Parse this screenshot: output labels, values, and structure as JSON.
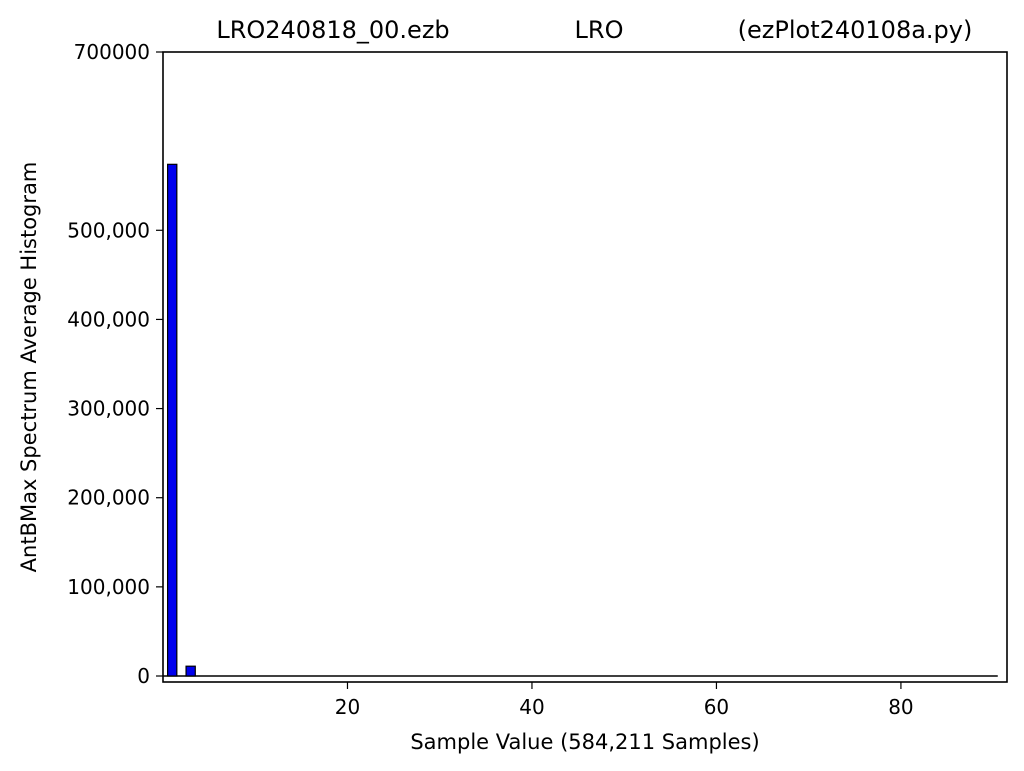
{
  "chart_data": {
    "type": "bar",
    "title_parts": [
      "LRO240818_00.ezb",
      "LRO",
      "(ezPlot240108a.py)"
    ],
    "xlabel": "Sample Value (584,211 Samples)",
    "ylabel": "AntBMax Spectrum Average Histogram",
    "xlim": [
      0,
      91.5
    ],
    "ylim": [
      0,
      700000
    ],
    "x_ticks": [
      20,
      40,
      60,
      80
    ],
    "x_tick_labels": [
      "20",
      "40",
      "60",
      "80"
    ],
    "y_ticks": [
      0,
      100000,
      200000,
      300000,
      400000,
      500000,
      700000
    ],
    "y_tick_labels": [
      "0",
      "100,000",
      "200,000",
      "300,000",
      "400,000",
      "500,000",
      "700000"
    ],
    "bars": [
      {
        "x": 1,
        "value": 574000
      },
      {
        "x": 3,
        "value": 11000
      }
    ],
    "baseline_x_range": [
      0,
      90.5
    ],
    "bar_color": "#0000ee",
    "grid": false,
    "legend": "none"
  }
}
